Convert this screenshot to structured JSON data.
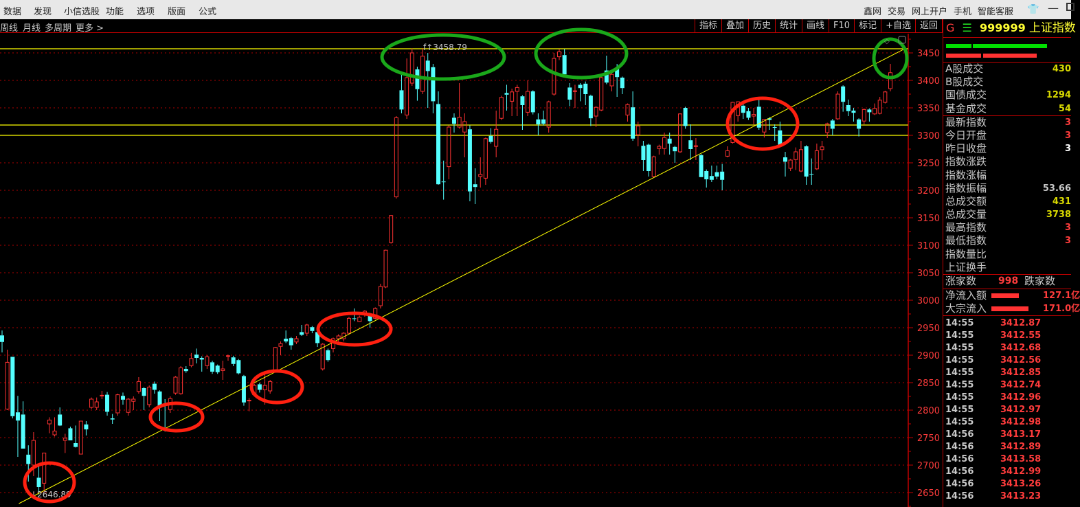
{
  "menu": {
    "left": [
      "数据",
      "发现",
      "小信选股",
      "功能",
      "选项",
      "版面",
      "公式"
    ],
    "right": [
      "鑫网",
      "交易",
      "网上开户",
      "手机",
      "智能客服"
    ],
    "icons": [
      "shirt-icon",
      "minimize-icon",
      "maximize-icon"
    ]
  },
  "toolbar": {
    "periods": [
      "周线",
      "月线",
      "多周期",
      "更多 >"
    ],
    "buttons": [
      "指标",
      "叠加",
      "历史",
      "统计",
      "画线",
      "F10",
      "标记",
      "+自选",
      "返回"
    ]
  },
  "panel": {
    "header": {
      "prefix": "G",
      "menu_glyph": "☰",
      "code": "999999",
      "name": "上证指数"
    },
    "stats1": [
      {
        "label": "A股成交",
        "value": "430",
        "color": "#d8d800"
      },
      {
        "label": "B股成交",
        "value": "",
        "color": "#d8d800"
      },
      {
        "label": "国债成交",
        "value": "1294",
        "color": "#d8d800"
      },
      {
        "label": "基金成交",
        "value": "54",
        "color": "#d8d800"
      }
    ],
    "stats2": [
      {
        "label": "最新指数",
        "value": "3",
        "color": "#ff3c3c"
      },
      {
        "label": "今日开盘",
        "value": "3",
        "color": "#ff3c3c"
      },
      {
        "label": "昨日收盘",
        "value": "3",
        "color": "#ffffff"
      },
      {
        "label": "指数涨跌",
        "value": "",
        "color": "#ff3c3c"
      },
      {
        "label": "指数涨幅",
        "value": "",
        "color": "#ff3c3c"
      },
      {
        "label": "指数振幅",
        "value": "53.66",
        "color": "#c8c8c8"
      },
      {
        "label": "总成交额",
        "value": "431",
        "color": "#d8d800"
      },
      {
        "label": "总成交量",
        "value": "3738",
        "color": "#d8d800"
      },
      {
        "label": "最高指数",
        "value": "3",
        "color": "#ff3c3c"
      },
      {
        "label": "最低指数",
        "value": "3",
        "color": "#ff3c3c"
      },
      {
        "label": "指数量比",
        "value": "",
        "color": "#c8c8c8"
      },
      {
        "label": "上证换手",
        "value": "",
        "color": "#c8c8c8"
      }
    ],
    "breadth": {
      "up_label": "涨家数",
      "up_value": "998",
      "down_label": "跌家数"
    },
    "flows": [
      {
        "label": "净流入额",
        "value": "127.1亿"
      },
      {
        "label": "大宗流入",
        "value": "171.0亿"
      }
    ],
    "ticks": [
      [
        "14:55",
        "3412.87"
      ],
      [
        "14:55",
        "3412.55"
      ],
      [
        "14:55",
        "3412.68"
      ],
      [
        "14:55",
        "3412.56"
      ],
      [
        "14:55",
        "3412.85"
      ],
      [
        "14:55",
        "3412.74"
      ],
      [
        "14:55",
        "3412.96"
      ],
      [
        "14:55",
        "3412.97"
      ],
      [
        "14:55",
        "3412.98"
      ],
      [
        "14:56",
        "3413.17"
      ],
      [
        "14:56",
        "3412.89"
      ],
      [
        "14:56",
        "3413.58"
      ],
      [
        "14:56",
        "3412.99"
      ],
      [
        "14:56",
        "3413.26"
      ],
      [
        "14:56",
        "3413.23"
      ]
    ]
  },
  "chart_data": {
    "type": "candlestick",
    "ylim": [
      2630,
      3485
    ],
    "yticks": [
      2650,
      2700,
      2750,
      2800,
      2850,
      2900,
      2950,
      3000,
      3050,
      3100,
      3150,
      3200,
      3250,
      3300,
      3350,
      3400,
      3450
    ],
    "grid": true,
    "colors": {
      "up": "#ff3232",
      "down": "#54ffff",
      "grid": "#b00000",
      "lines": "#ffff00",
      "circle_red": "#ff2010",
      "circle_green": "#1aa81a"
    },
    "high_label": "3458.79",
    "low_label": "2646.89",
    "horizontal_lines": [
      3457.5,
      3318.75,
      3300
    ],
    "trendline": {
      "from": [
        3.2,
        2630
      ],
      "to": [
        172,
        3458.8
      ]
    },
    "candles_ohlc": [
      [
        2936,
        2945,
        2905,
        2924
      ],
      [
        2802,
        2910,
        2800,
        2887
      ],
      [
        2897,
        2897,
        2785,
        2789
      ],
      [
        2796,
        2826,
        2715,
        2781
      ],
      [
        2792,
        2816,
        2730,
        2730
      ],
      [
        2719,
        2736,
        2670,
        2702
      ],
      [
        2700,
        2760,
        2680,
        2745
      ],
      [
        2677,
        2700,
        2646.89,
        2660
      ],
      [
        2667,
        2722,
        2650,
        2722
      ],
      [
        2775,
        2787,
        2758,
        2782
      ],
      [
        2755,
        2787,
        2752,
        2762
      ],
      [
        2792,
        2805,
        2771,
        2772
      ],
      [
        2745,
        2757,
        2722,
        2749
      ],
      [
        2767,
        2770,
        2745,
        2745
      ],
      [
        2740,
        2772,
        2732,
        2733
      ],
      [
        2720,
        2780,
        2720,
        2780
      ],
      [
        2774,
        2780,
        2754,
        2765
      ],
      [
        2805,
        2823,
        2802,
        2820
      ],
      [
        2805,
        2823,
        2800,
        2815
      ],
      [
        2826,
        2835,
        2820,
        2827
      ],
      [
        2828,
        2833,
        2790,
        2797
      ],
      [
        2785,
        2793,
        2775,
        2783
      ],
      [
        2795,
        2830,
        2790,
        2828
      ],
      [
        2826,
        2832,
        2810,
        2819
      ],
      [
        2796,
        2822,
        2790,
        2820
      ],
      [
        2816,
        2825,
        2800,
        2820
      ],
      [
        2834,
        2860,
        2830,
        2852
      ],
      [
        2840,
        2842,
        2800,
        2826
      ],
      [
        2810,
        2845,
        2805,
        2842
      ],
      [
        2848,
        2852,
        2830,
        2837
      ],
      [
        2834,
        2836,
        2780,
        2808
      ],
      [
        2812,
        2820,
        2761,
        2810
      ],
      [
        2801,
        2825,
        2795,
        2821
      ],
      [
        2831,
        2862,
        2828,
        2860
      ],
      [
        2830,
        2880,
        2828,
        2877
      ],
      [
        2875,
        2880,
        2868,
        2871
      ],
      [
        2881,
        2904,
        2878,
        2894
      ],
      [
        2901,
        2912,
        2885,
        2895
      ],
      [
        2895,
        2898,
        2870,
        2892
      ],
      [
        2881,
        2900,
        2875,
        2897
      ],
      [
        2887,
        2890,
        2866,
        2870
      ],
      [
        2881,
        2883,
        2866,
        2869
      ],
      [
        2872,
        2890,
        2855,
        2875
      ],
      [
        2898,
        2901,
        2890,
        2899
      ],
      [
        2896,
        2899,
        2880,
        2884
      ],
      [
        2891,
        2893,
        2865,
        2867
      ],
      [
        2862,
        2864,
        2808,
        2814
      ],
      [
        2817,
        2822,
        2798,
        2818
      ],
      [
        2828,
        2848,
        2825,
        2845
      ],
      [
        2847,
        2850,
        2832,
        2837
      ],
      [
        2837,
        2870,
        2810,
        2845
      ],
      [
        2835,
        2855,
        2830,
        2852
      ],
      [
        2872,
        2915,
        2870,
        2914
      ],
      [
        2916,
        2925,
        2900,
        2921
      ],
      [
        2930,
        2945,
        2922,
        2925
      ],
      [
        2931,
        2933,
        2910,
        2918
      ],
      [
        2924,
        2935,
        2920,
        2930
      ],
      [
        2942,
        2955,
        2935,
        2937
      ],
      [
        2940,
        2957,
        2935,
        2955
      ],
      [
        2951,
        2953,
        2940,
        2944
      ],
      [
        2942,
        2945,
        2915,
        2922
      ],
      [
        2875,
        2922,
        2872,
        2920
      ],
      [
        2909,
        2912,
        2888,
        2891
      ],
      [
        2912,
        2932,
        2905,
        2930
      ],
      [
        2930,
        2938,
        2925,
        2935
      ],
      [
        2930,
        2942,
        2925,
        2940
      ],
      [
        2940,
        2970,
        2938,
        2967
      ],
      [
        2967,
        2985,
        2962,
        2966
      ],
      [
        2961,
        2972,
        2960,
        2969
      ],
      [
        2974,
        2982,
        2970,
        2980
      ],
      [
        2974,
        2977,
        2950,
        2962
      ],
      [
        2967,
        2987,
        2965,
        2985
      ],
      [
        2990,
        3030,
        2985,
        3025
      ],
      [
        3024,
        3092,
        3022,
        3091
      ],
      [
        3105,
        3155,
        3103,
        3154
      ],
      [
        3188,
        3335,
        3185,
        3332
      ],
      [
        3382,
        3415,
        3340,
        3347
      ],
      [
        3337,
        3440,
        3330,
        3405
      ],
      [
        3395,
        3458,
        3390,
        3450
      ],
      [
        3420,
        3425,
        3363,
        3384
      ],
      [
        3380,
        3458.79,
        3375,
        3444
      ],
      [
        3436,
        3450,
        3350,
        3417
      ],
      [
        3424,
        3430,
        3340,
        3362
      ],
      [
        3357,
        3380,
        3210,
        3211
      ],
      [
        3216,
        3254,
        3183,
        3215
      ],
      [
        3243,
        3318,
        3220,
        3315
      ],
      [
        3332,
        3340,
        3305,
        3321
      ],
      [
        3315,
        3395,
        3312,
        3333
      ],
      [
        3306,
        3340,
        3260,
        3325
      ],
      [
        3311,
        3318,
        3180,
        3198
      ],
      [
        3211,
        3240,
        3175,
        3206
      ],
      [
        3225,
        3260,
        3205,
        3229
      ],
      [
        3222,
        3296,
        3210,
        3294
      ],
      [
        3299,
        3313,
        3285,
        3288
      ],
      [
        3280,
        3345,
        3260,
        3311
      ],
      [
        3331,
        3372,
        3328,
        3369
      ],
      [
        3377,
        3392,
        3345,
        3374
      ],
      [
        3362,
        3385,
        3335,
        3379
      ],
      [
        3380,
        3392,
        3335,
        3387
      ],
      [
        3371,
        3373,
        3310,
        3355
      ],
      [
        3342,
        3400,
        3335,
        3380
      ],
      [
        3380,
        3382,
        3338,
        3342
      ],
      [
        3329,
        3340,
        3300,
        3320
      ],
      [
        3329,
        3345,
        3318,
        3321
      ],
      [
        3315,
        3363,
        3305,
        3361
      ],
      [
        3375,
        3450,
        3372,
        3440
      ],
      [
        3443,
        3457,
        3437,
        3452
      ],
      [
        3446,
        3457,
        3408,
        3411
      ],
      [
        3387,
        3395,
        3353,
        3365
      ],
      [
        3380,
        3392,
        3350,
        3381
      ],
      [
        3392,
        3395,
        3362,
        3386
      ],
      [
        3394,
        3398,
        3355,
        3375
      ],
      [
        3372,
        3374,
        3317,
        3331
      ],
      [
        3335,
        3353,
        3315,
        3351
      ],
      [
        3346,
        3407,
        3344,
        3405
      ],
      [
        3418,
        3445,
        3393,
        3396
      ],
      [
        3390,
        3413,
        3380,
        3411
      ],
      [
        3421,
        3430,
        3370,
        3406
      ],
      [
        3405,
        3407,
        3375,
        3386
      ],
      [
        3337,
        3358,
        3325,
        3356
      ],
      [
        3351,
        3380,
        3290,
        3294
      ],
      [
        3301,
        3325,
        3280,
        3317
      ],
      [
        3281,
        3290,
        3235,
        3255
      ],
      [
        3283,
        3285,
        3225,
        3235
      ],
      [
        3225,
        3263,
        3223,
        3261
      ],
      [
        3276,
        3283,
        3265,
        3280
      ],
      [
        3276,
        3305,
        3265,
        3296
      ],
      [
        3294,
        3305,
        3265,
        3285
      ],
      [
        3279,
        3281,
        3250,
        3271
      ],
      [
        3270,
        3340,
        3268,
        3339
      ],
      [
        3350,
        3352,
        3312,
        3317
      ],
      [
        3291,
        3320,
        3255,
        3275
      ],
      [
        3280,
        3295,
        3255,
        3281
      ],
      [
        3264,
        3266,
        3224,
        3224
      ],
      [
        3235,
        3238,
        3205,
        3220
      ],
      [
        3226,
        3245,
        3215,
        3219
      ],
      [
        3233,
        3245,
        3220,
        3225
      ],
      [
        3234,
        3248,
        3200,
        3219
      ],
      [
        3262,
        3280,
        3260,
        3272
      ],
      [
        3287,
        3361,
        3285,
        3360
      ],
      [
        3336,
        3362,
        3325,
        3361
      ],
      [
        3354,
        3360,
        3330,
        3341
      ],
      [
        3344,
        3350,
        3328,
        3332
      ],
      [
        3335,
        3350,
        3320,
        3338
      ],
      [
        3352,
        3365,
        3310,
        3314
      ],
      [
        3306,
        3330,
        3296,
        3329
      ],
      [
        3331,
        3333,
        3310,
        3328
      ],
      [
        3315,
        3320,
        3290,
        3314
      ],
      [
        3309,
        3325,
        3280,
        3283
      ],
      [
        3260,
        3270,
        3225,
        3252
      ],
      [
        3240,
        3257,
        3235,
        3255
      ],
      [
        3256,
        3278,
        3237,
        3270
      ],
      [
        3235,
        3290,
        3233,
        3274
      ],
      [
        3280,
        3282,
        3210,
        3225
      ],
      [
        3230,
        3258,
        3210,
        3229
      ],
      [
        3239,
        3285,
        3237,
        3272
      ],
      [
        3274,
        3290,
        3255,
        3279
      ],
      [
        3305,
        3323,
        3295,
        3321
      ],
      [
        3327,
        3330,
        3300,
        3312
      ],
      [
        3330,
        3380,
        3328,
        3375
      ],
      [
        3389,
        3391,
        3343,
        3361
      ],
      [
        3355,
        3365,
        3335,
        3344
      ],
      [
        3345,
        3350,
        3325,
        3341
      ],
      [
        3329,
        3331,
        3298,
        3312
      ],
      [
        3326,
        3349,
        3320,
        3347
      ],
      [
        3347,
        3349,
        3325,
        3342
      ],
      [
        3339,
        3358,
        3337,
        3349
      ],
      [
        3340,
        3370,
        3338,
        3364
      ],
      [
        3360,
        3381,
        3358,
        3379
      ],
      [
        3385,
        3430,
        3380,
        3414
      ]
    ]
  }
}
